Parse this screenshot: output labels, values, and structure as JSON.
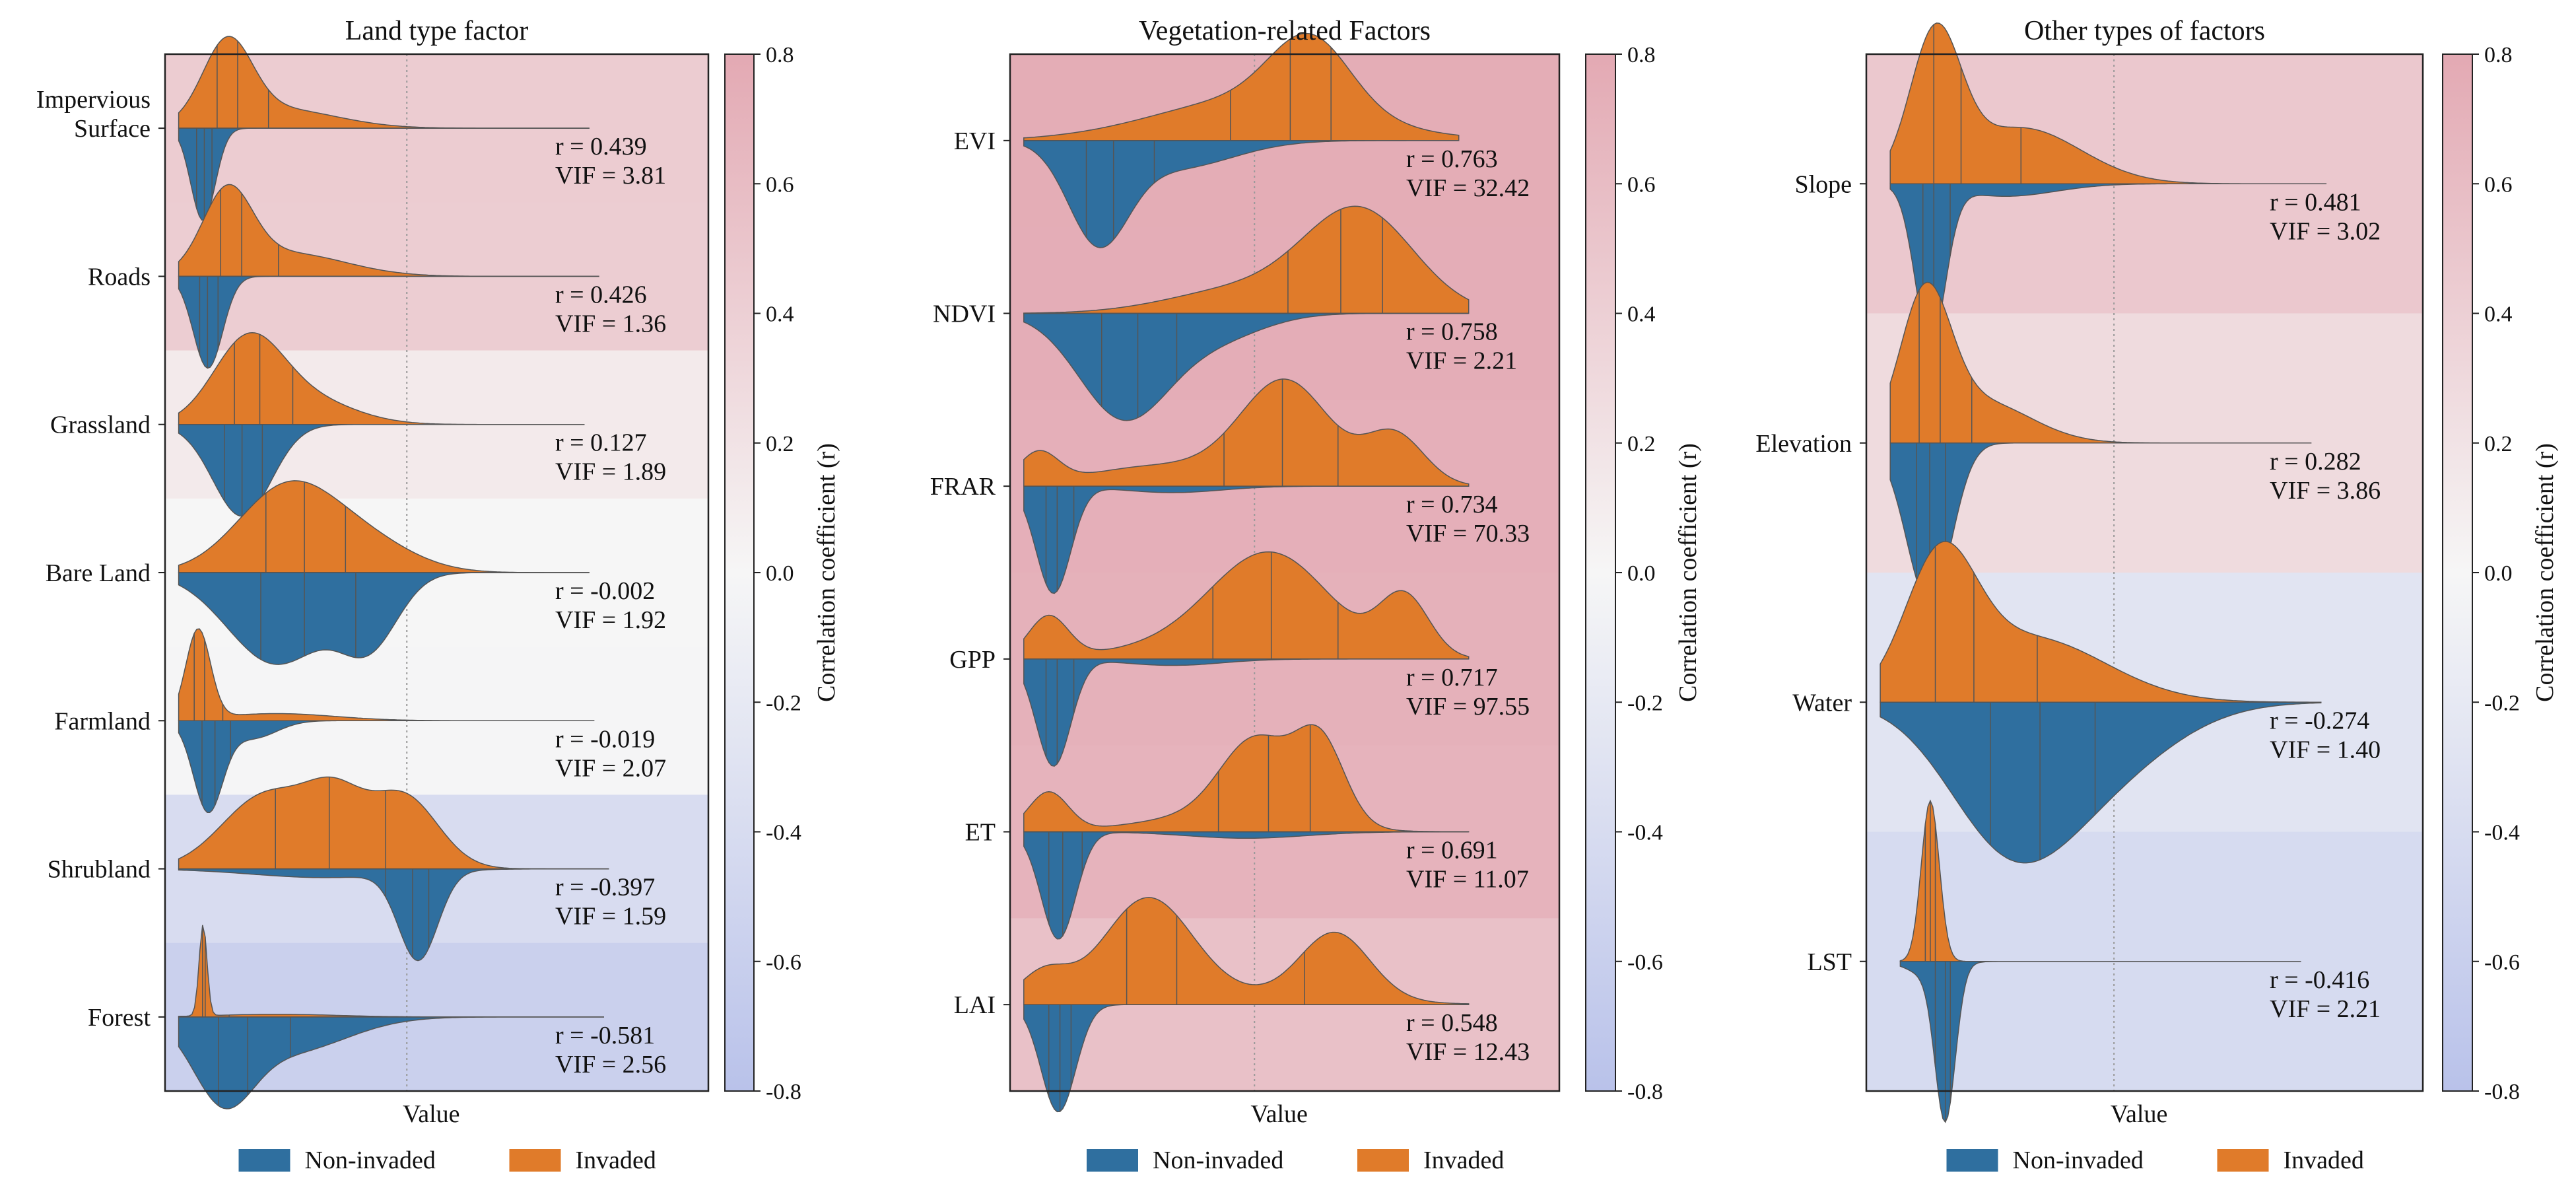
{
  "figure": {
    "xlabel": "Value",
    "colorbar_label": "Correlation coefficient (r)",
    "colorbar_ticks": [
      "0.8",
      "0.6",
      "0.4",
      "0.2",
      "0.0",
      "-0.2",
      "-0.4",
      "-0.6",
      "-0.8"
    ],
    "legend": {
      "non_invaded": "Non-invaded",
      "invaded": "Invaded"
    },
    "colors": {
      "non_invaded": "#2f6f9f",
      "invaded": "#e07b2a",
      "positive": "#e3a9b3",
      "negative": "#b9c2ea",
      "neutral": "#f6f6f6"
    }
  },
  "chart_data": [
    {
      "type": "split-violin",
      "title": "Land type factor",
      "xlabel": "Value",
      "ylabel": "",
      "colorbar": {
        "label": "Correlation coefficient (r)",
        "range": [
          -0.8,
          0.8
        ]
      },
      "factors": [
        {
          "label": [
            "Impervious",
            "Surface"
          ],
          "r": 0.439,
          "vif": 3.81,
          "r_text": "r = 0.439",
          "vif_text": "VIF = 3.81",
          "invaded_peaks": [
            [
              0.1,
              0.05,
              1.0
            ],
            [
              0.2,
              0.12,
              0.25
            ]
          ],
          "non_invaded_peaks": [
            [
              0.05,
              0.025,
              0.9
            ]
          ],
          "extent": [
            0.0,
            0.84
          ]
        },
        {
          "label": [
            "Roads"
          ],
          "r": 0.426,
          "vif": 1.36,
          "r_text": "r = 0.426",
          "vif_text": "VIF = 1.36",
          "invaded_peaks": [
            [
              0.1,
              0.05,
              1.0
            ],
            [
              0.22,
              0.12,
              0.3
            ]
          ],
          "non_invaded_peaks": [
            [
              0.06,
              0.03,
              1.0
            ]
          ],
          "extent": [
            0.0,
            0.86
          ]
        },
        {
          "label": [
            "Grassland"
          ],
          "r": 0.127,
          "vif": 1.89,
          "r_text": "r = 0.127",
          "vif_text": "VIF = 1.89",
          "invaded_peaks": [
            [
              0.14,
              0.07,
              1.0
            ],
            [
              0.25,
              0.1,
              0.35
            ]
          ],
          "non_invaded_peaks": [
            [
              0.13,
              0.06,
              1.0
            ]
          ],
          "extent": [
            0.0,
            0.83
          ]
        },
        {
          "label": [
            "Bare Land"
          ],
          "r": -0.002,
          "vif": 1.92,
          "r_text": "r = -0.002",
          "vif_text": "VIF = 1.92",
          "invaded_peaks": [
            [
              0.22,
              0.1,
              1.0
            ],
            [
              0.38,
              0.1,
              0.35
            ]
          ],
          "non_invaded_peaks": [
            [
              0.2,
              0.1,
              0.95
            ],
            [
              0.39,
              0.06,
              0.7
            ]
          ],
          "extent": [
            0.0,
            0.84
          ]
        },
        {
          "label": [
            "Farmland"
          ],
          "r": -0.019,
          "vif": 2.07,
          "r_text": "r = -0.019",
          "vif_text": "VIF = 2.07",
          "invaded_peaks": [
            [
              0.04,
              0.025,
              1.0
            ],
            [
              0.2,
              0.12,
              0.08
            ]
          ],
          "non_invaded_peaks": [
            [
              0.06,
              0.03,
              1.0
            ],
            [
              0.15,
              0.05,
              0.2
            ]
          ],
          "extent": [
            0.0,
            0.85
          ]
        },
        {
          "label": [
            "Shrubland"
          ],
          "r": -0.397,
          "vif": 1.59,
          "r_text": "r = -0.397",
          "vif_text": "VIF = 1.59",
          "invaded_peaks": [
            [
              0.18,
              0.09,
              0.9
            ],
            [
              0.32,
              0.06,
              0.72
            ],
            [
              0.46,
              0.07,
              0.88
            ]
          ],
          "non_invaded_peaks": [
            [
              0.49,
              0.04,
              1.0
            ],
            [
              0.3,
              0.15,
              0.1
            ]
          ],
          "extent": [
            0.0,
            0.88
          ]
        },
        {
          "label": [
            "Forest"
          ],
          "r": -0.581,
          "vif": 2.56,
          "r_text": "r = -0.581",
          "vif_text": "VIF = 2.56",
          "invaded_peaks": [
            [
              0.05,
              0.008,
              1.0
            ],
            [
              0.2,
              0.12,
              0.03
            ]
          ],
          "non_invaded_peaks": [
            [
              0.09,
              0.06,
              1.0
            ],
            [
              0.22,
              0.12,
              0.5
            ]
          ],
          "extent": [
            0.0,
            0.87
          ]
        }
      ]
    },
    {
      "type": "split-violin",
      "title": "Vegetation-related Factors",
      "xlabel": "Value",
      "ylabel": "",
      "colorbar": {
        "label": "Correlation coefficient (r)",
        "range": [
          -0.8,
          0.8
        ]
      },
      "factors": [
        {
          "label": [
            "EVI"
          ],
          "r": 0.763,
          "vif": 32.42,
          "r_text": "r = 0.763",
          "vif_text": "VIF = 32.42",
          "invaded_peaks": [
            [
              0.47,
              0.2,
              0.55
            ],
            [
              0.58,
              0.08,
              0.9
            ]
          ],
          "non_invaded_peaks": [
            [
              0.15,
              0.06,
              1.0
            ],
            [
              0.3,
              0.12,
              0.3
            ]
          ],
          "extent": [
            0.0,
            0.88
          ]
        },
        {
          "label": [
            "NDVI"
          ],
          "r": 0.758,
          "vif": 2.21,
          "r_text": "r = 0.758",
          "vif_text": "VIF = 2.21",
          "invaded_peaks": [
            [
              0.68,
              0.11,
              1.0
            ],
            [
              0.45,
              0.15,
              0.25
            ]
          ],
          "non_invaded_peaks": [
            [
              0.2,
              0.09,
              1.0
            ],
            [
              0.38,
              0.1,
              0.25
            ]
          ],
          "extent": [
            0.0,
            0.9
          ]
        },
        {
          "label": [
            "FRAR"
          ],
          "r": 0.734,
          "vif": 70.33,
          "r_text": "r = 0.734",
          "vif_text": "VIF = 70.33",
          "invaded_peaks": [
            [
              0.03,
              0.04,
              0.3
            ],
            [
              0.53,
              0.09,
              1.0
            ],
            [
              0.75,
              0.06,
              0.5
            ],
            [
              0.28,
              0.15,
              0.2
            ]
          ],
          "non_invaded_peaks": [
            [
              0.06,
              0.035,
              1.0
            ],
            [
              0.3,
              0.1,
              0.06
            ]
          ],
          "extent": [
            0.0,
            0.9
          ]
        },
        {
          "label": [
            "GPP"
          ],
          "r": 0.717,
          "vif": 97.55,
          "r_text": "r = 0.717",
          "vif_text": "VIF = 97.55",
          "invaded_peaks": [
            [
              0.05,
              0.04,
              0.4
            ],
            [
              0.5,
              0.12,
              1.0
            ],
            [
              0.77,
              0.05,
              0.58
            ],
            [
              0.3,
              0.15,
              0.1
            ]
          ],
          "non_invaded_peaks": [
            [
              0.06,
              0.035,
              1.0
            ],
            [
              0.3,
              0.1,
              0.06
            ]
          ],
          "extent": [
            0.0,
            0.9
          ]
        },
        {
          "label": [
            "ET"
          ],
          "r": 0.691,
          "vif": 11.07,
          "r_text": "r = 0.691",
          "vif_text": "VIF = 11.07",
          "invaded_peaks": [
            [
              0.05,
              0.04,
              0.45
            ],
            [
              0.47,
              0.07,
              0.9
            ],
            [
              0.6,
              0.05,
              0.95
            ],
            [
              0.4,
              0.15,
              0.2
            ]
          ],
          "non_invaded_peaks": [
            [
              0.07,
              0.035,
              1.0
            ],
            [
              0.45,
              0.12,
              0.06
            ]
          ],
          "extent": [
            0.0,
            0.9
          ]
        },
        {
          "label": [
            "LAI"
          ],
          "r": 0.548,
          "vif": 12.43,
          "r_text": "r = 0.548",
          "vif_text": "VIF = 12.43",
          "invaded_peaks": [
            [
              0.04,
              0.05,
              0.3
            ],
            [
              0.25,
              0.09,
              1.0
            ],
            [
              0.63,
              0.07,
              0.65
            ],
            [
              0.45,
              0.2,
              0.1
            ]
          ],
          "non_invaded_peaks": [
            [
              0.07,
              0.035,
              1.0
            ]
          ],
          "extent": [
            0.0,
            0.9
          ]
        }
      ]
    },
    {
      "type": "split-violin",
      "title": "Other types of factors",
      "xlabel": "Value",
      "ylabel": "",
      "colorbar": {
        "label": "Correlation coefficient (r)",
        "range": [
          -0.8,
          0.8
        ]
      },
      "factors": [
        {
          "label": [
            "Slope"
          ],
          "r": 0.481,
          "vif": 3.02,
          "r_text": "r = 0.481",
          "vif_text": "VIF = 3.02",
          "invaded_peaks": [
            [
              0.11,
              0.05,
              1.0
            ],
            [
              0.28,
              0.12,
              0.4
            ]
          ],
          "non_invaded_peaks": [
            [
              0.1,
              0.03,
              1.0
            ],
            [
              0.25,
              0.1,
              0.08
            ]
          ],
          "extent": [
            0.02,
            0.89
          ]
        },
        {
          "label": [
            "Elevation"
          ],
          "r": 0.282,
          "vif": 3.86,
          "r_text": "r = 0.282",
          "vif_text": "VIF = 3.86",
          "invaded_peaks": [
            [
              0.09,
              0.05,
              1.0
            ],
            [
              0.2,
              0.1,
              0.3
            ]
          ],
          "non_invaded_peaks": [
            [
              0.11,
              0.04,
              1.0
            ],
            [
              0.07,
              0.04,
              0.5
            ]
          ],
          "extent": [
            0.02,
            0.86
          ]
        },
        {
          "label": [
            "Water"
          ],
          "r": -0.274,
          "vif": 1.4,
          "r_text": "r = -0.274",
          "vif_text": "VIF = 1.40",
          "invaded_peaks": [
            [
              0.12,
              0.07,
              1.0
            ],
            [
              0.3,
              0.15,
              0.5
            ]
          ],
          "non_invaded_peaks": [
            [
              0.25,
              0.12,
              0.7
            ],
            [
              0.42,
              0.15,
              0.45
            ]
          ],
          "extent": [
            0.0,
            0.88
          ]
        },
        {
          "label": [
            "LST"
          ],
          "r": -0.416,
          "vif": 2.21,
          "r_text": "r = -0.416",
          "vif_text": "VIF = 2.21",
          "invaded_peaks": [
            [
              0.1,
              0.018,
              1.0
            ]
          ],
          "non_invaded_peaks": [
            [
              0.13,
              0.02,
              1.0
            ],
            [
              0.1,
              0.04,
              0.1
            ]
          ],
          "extent": [
            0.04,
            0.84
          ]
        }
      ]
    }
  ]
}
